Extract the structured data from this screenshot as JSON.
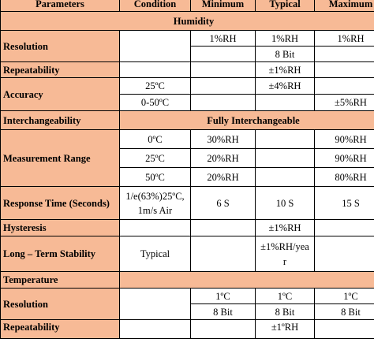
{
  "headers": {
    "parameters": "Parameters",
    "condition": "Condition",
    "minimum": "Minimum",
    "typical": "Typical",
    "maximum": "Maximum"
  },
  "sections": {
    "humidity": "Humidity",
    "temperature": "Temperature"
  },
  "rows": {
    "resolution_h": {
      "label": "Resolution",
      "min": "1%RH",
      "typ": "1%RH",
      "max": "1%RH",
      "typ2": "8 Bit"
    },
    "repeatability_h": {
      "label": "Repeatability",
      "typ": "±1%RH"
    },
    "accuracy": {
      "label": "Accuracy",
      "cond1": "25ºC",
      "typ1": "±4%RH",
      "cond2": "0-50ºC",
      "max2": "±5%RH"
    },
    "interchangeability": {
      "label": "Interchangeability",
      "value": "Fully Interchangeable"
    },
    "measurement_range": {
      "label": "Measurement Range",
      "r1": {
        "cond": "0ºC",
        "min": "30%RH",
        "max": "90%RH"
      },
      "r2": {
        "cond": "25ºC",
        "min": "20%RH",
        "max": "90%RH"
      },
      "r3": {
        "cond": "50ºC",
        "min": "20%RH",
        "max": "80%RH"
      }
    },
    "response_time": {
      "label": "Response Time (Seconds)",
      "cond_line1": "1/e(63%)25ºC,",
      "cond_line2": "1m/s Air",
      "min": "6 S",
      "typ": "10 S",
      "max": "15 S"
    },
    "hysteresis": {
      "label": "Hysteresis",
      "typ": "±1%RH"
    },
    "long_term": {
      "label": "Long – Term Stability",
      "cond": "Typical",
      "typ_line1": "±1%RH/yea",
      "typ_line2": "r"
    },
    "resolution_t": {
      "label": "Resolution",
      "min1": "1ºC",
      "typ1": "1ºC",
      "max1": "1ºC",
      "min2": "8 Bit",
      "typ2": "8 Bit",
      "max2": "8 Bit"
    },
    "repeatability_t": {
      "label": "Repeatability",
      "typ": "±1ºRH"
    }
  }
}
